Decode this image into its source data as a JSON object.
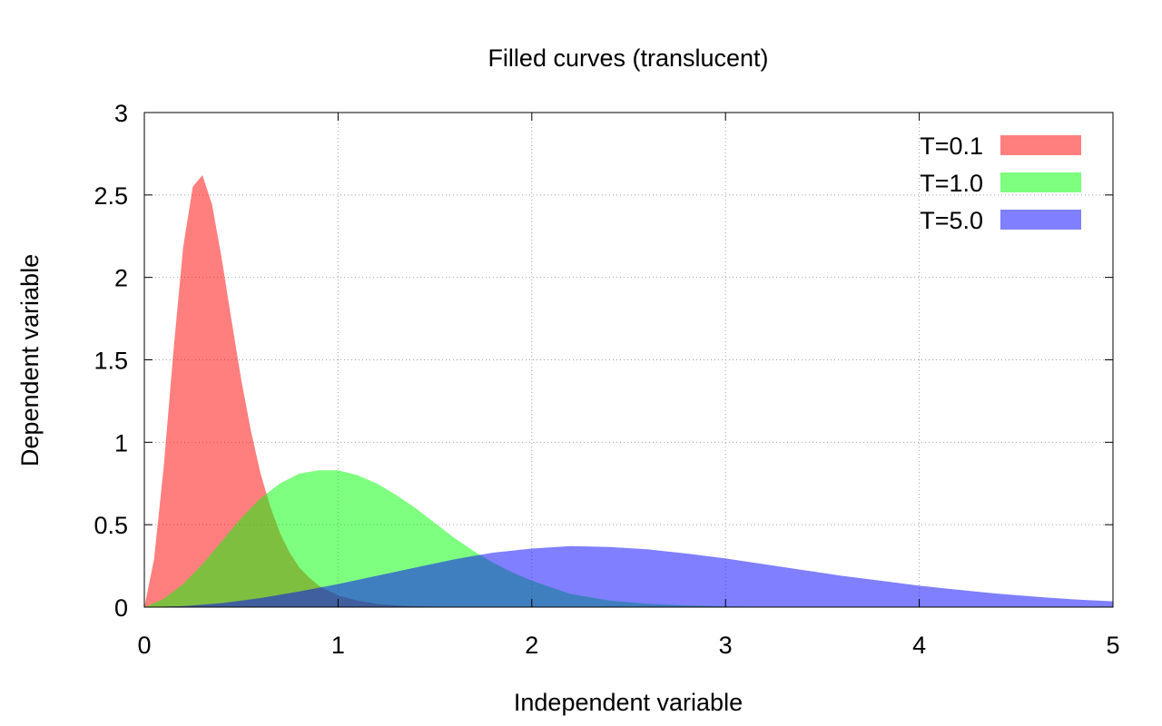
{
  "chart_data": {
    "type": "area",
    "title": "Filled curves (translucent)",
    "xlabel": "Independent variable",
    "ylabel": "Dependent variable",
    "xlim": [
      0,
      5
    ],
    "ylim": [
      0,
      3
    ],
    "x_ticks": [
      "0",
      "1",
      "2",
      "3",
      "4",
      "5"
    ],
    "y_ticks": [
      "0",
      "0.5",
      "1",
      "1.5",
      "2",
      "2.5",
      "3"
    ],
    "grid": true,
    "legend_position": "top-right",
    "fill_opacity": 0.5,
    "series": [
      {
        "name": "T=0.1",
        "color": "#ff0000",
        "x": [
          0.0,
          0.05,
          0.1,
          0.15,
          0.2,
          0.25,
          0.3,
          0.35,
          0.4,
          0.45,
          0.5,
          0.55,
          0.6,
          0.65,
          0.7,
          0.75,
          0.8,
          0.85,
          0.9,
          1.0,
          1.1,
          1.2,
          1.3,
          1.4,
          1.5,
          1.6,
          1.8,
          2.0,
          2.5,
          3.0,
          5.0
        ],
        "values": [
          0.0,
          0.29,
          0.85,
          1.55,
          2.18,
          2.55,
          2.62,
          2.44,
          2.11,
          1.74,
          1.38,
          1.07,
          0.81,
          0.61,
          0.45,
          0.33,
          0.24,
          0.18,
          0.13,
          0.07,
          0.04,
          0.02,
          0.01,
          0.005,
          0.003,
          0.001,
          0.0,
          0.0,
          0.0,
          0.0,
          0.0
        ]
      },
      {
        "name": "T=1.0",
        "color": "#00ff00",
        "x": [
          0.0,
          0.1,
          0.2,
          0.3,
          0.4,
          0.5,
          0.6,
          0.7,
          0.8,
          0.9,
          1.0,
          1.1,
          1.2,
          1.3,
          1.4,
          1.5,
          1.6,
          1.7,
          1.8,
          1.9,
          2.0,
          2.2,
          2.4,
          2.6,
          2.8,
          3.0,
          3.2,
          3.5,
          4.0,
          5.0
        ],
        "values": [
          0.0,
          0.05,
          0.14,
          0.26,
          0.4,
          0.54,
          0.66,
          0.75,
          0.81,
          0.83,
          0.83,
          0.8,
          0.75,
          0.68,
          0.6,
          0.51,
          0.42,
          0.34,
          0.27,
          0.21,
          0.16,
          0.08,
          0.04,
          0.02,
          0.01,
          0.005,
          0.002,
          0.0,
          0.0,
          0.0
        ]
      },
      {
        "name": "T=5.0",
        "color": "#0000ff",
        "x": [
          0.0,
          0.2,
          0.4,
          0.6,
          0.8,
          1.0,
          1.2,
          1.4,
          1.6,
          1.8,
          2.0,
          2.2,
          2.4,
          2.6,
          2.8,
          3.0,
          3.2,
          3.4,
          3.6,
          3.8,
          4.0,
          4.2,
          4.4,
          4.6,
          4.8,
          5.0
        ],
        "values": [
          0.0,
          0.006,
          0.024,
          0.055,
          0.095,
          0.14,
          0.19,
          0.24,
          0.29,
          0.33,
          0.355,
          0.37,
          0.365,
          0.35,
          0.325,
          0.295,
          0.26,
          0.225,
          0.19,
          0.16,
          0.13,
          0.105,
          0.082,
          0.063,
          0.047,
          0.035
        ]
      }
    ]
  }
}
